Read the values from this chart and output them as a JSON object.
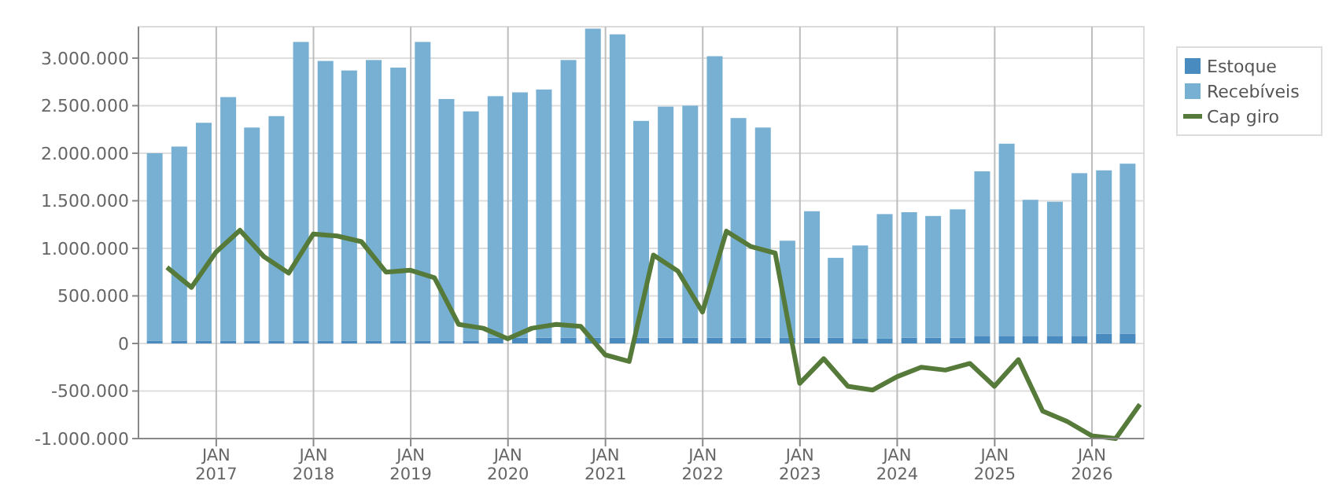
{
  "chart_data": {
    "type": "bar",
    "stacked": true,
    "grid": true,
    "legend": "top right",
    "x": [
      "2016-05-15",
      "2016-08-15",
      "2016-11-15",
      "2017-02-15",
      "2017-05-15",
      "2017-08-15",
      "2017-11-15",
      "2018-02-15",
      "2018-05-15",
      "2018-08-15",
      "2018-11-15",
      "2019-02-15",
      "2019-05-15",
      "2019-08-15",
      "2019-11-15",
      "2020-02-15",
      "2020-05-15",
      "2020-08-15",
      "2020-11-15",
      "2021-02-15",
      "2021-05-15",
      "2021-08-15",
      "2021-11-15",
      "2022-02-15",
      "2022-05-15",
      "2022-08-15",
      "2022-11-15",
      "2023-02-15",
      "2023-05-15",
      "2023-08-15",
      "2023-11-15",
      "2024-02-15",
      "2024-05-15",
      "2024-08-15",
      "2024-11-15",
      "2025-02-15",
      "2025-05-15",
      "2025-08-15",
      "2025-11-15",
      "2026-02-15",
      "2026-05-15"
    ],
    "xlim": [
      "2016-03-15",
      "2026-07-15"
    ],
    "xticks": [
      {
        "value": "2017-01-01",
        "label": "JAN 2017"
      },
      {
        "value": "2018-01-01",
        "label": "JAN 2018"
      },
      {
        "value": "2019-01-01",
        "label": "JAN 2019"
      },
      {
        "value": "2020-01-01",
        "label": "JAN 2020"
      },
      {
        "value": "2021-01-01",
        "label": "JAN 2021"
      },
      {
        "value": "2022-01-01",
        "label": "JAN 2022"
      },
      {
        "value": "2023-01-01",
        "label": "JAN 2023"
      },
      {
        "value": "2024-01-01",
        "label": "JAN 2024"
      },
      {
        "value": "2025-01-01",
        "label": "JAN 2025"
      },
      {
        "value": "2026-01-01",
        "label": "JAN 2026"
      }
    ],
    "ylim": [
      -1000000,
      3330000
    ],
    "yticks": [
      {
        "value": -1000000,
        "label": "-1.000.000"
      },
      {
        "value": -500000,
        "label": "-500.000"
      },
      0,
      {
        "value": 500000,
        "label": "500.000"
      },
      {
        "value": 1000000,
        "label": "1.000.000"
      },
      {
        "value": 1500000,
        "label": "1.500.000"
      },
      {
        "value": 2000000,
        "label": "2.000.000"
      },
      {
        "value": 2500000,
        "label": "2.500.000"
      },
      {
        "value": 3000000,
        "label": "3.000.000"
      }
    ],
    "series": [
      {
        "name": "Estoque",
        "color": "#4a8bbf",
        "values": [
          30000,
          30000,
          30000,
          30000,
          30000,
          30000,
          30000,
          30000,
          30000,
          30000,
          30000,
          30000,
          30000,
          30000,
          60000,
          60000,
          60000,
          60000,
          60000,
          60000,
          60000,
          60000,
          60000,
          60000,
          60000,
          60000,
          60000,
          60000,
          60000,
          50000,
          50000,
          60000,
          60000,
          60000,
          80000,
          80000,
          80000,
          80000,
          80000,
          100000,
          100000
        ]
      },
      {
        "name": "Recebíveis",
        "color": "#78b0d4",
        "values": [
          1970000,
          2040000,
          2290000,
          2560000,
          2240000,
          2360000,
          3140000,
          2940000,
          2840000,
          2950000,
          2870000,
          3140000,
          2540000,
          2410000,
          2540000,
          2580000,
          2610000,
          2920000,
          3250000,
          3190000,
          2280000,
          2430000,
          2440000,
          2960000,
          2310000,
          2210000,
          1020000,
          1330000,
          840000,
          980000,
          1310000,
          1320000,
          1280000,
          1350000,
          1730000,
          2020000,
          1430000,
          1410000,
          1710000,
          1720000,
          1790000
        ]
      },
      {
        "name": "Cap giro",
        "type": "line",
        "color": "#567a3a",
        "x": [
          "2016-06-30",
          "2016-09-30",
          "2016-12-31",
          "2017-03-31",
          "2017-06-30",
          "2017-09-30",
          "2017-12-31",
          "2018-03-31",
          "2018-06-30",
          "2018-09-30",
          "2018-12-31",
          "2019-03-31",
          "2019-06-30",
          "2019-09-30",
          "2019-12-31",
          "2020-03-31",
          "2020-06-30",
          "2020-09-30",
          "2020-12-31",
          "2021-03-31",
          "2021-06-30",
          "2021-09-30",
          "2021-12-31",
          "2022-03-31",
          "2022-06-30",
          "2022-09-30",
          "2022-12-31",
          "2023-03-31",
          "2023-06-30",
          "2023-09-30",
          "2023-12-31",
          "2024-03-31",
          "2024-06-30",
          "2024-09-30",
          "2024-12-31",
          "2025-03-31",
          "2025-06-30",
          "2025-09-30",
          "2025-12-31",
          "2026-03-31",
          "2026-06-30"
        ],
        "values": [
          800000,
          590000,
          960000,
          1190000,
          910000,
          740000,
          1150000,
          1130000,
          1070000,
          750000,
          770000,
          690000,
          200000,
          160000,
          50000,
          160000,
          200000,
          180000,
          -120000,
          -190000,
          930000,
          760000,
          330000,
          1180000,
          1020000,
          950000,
          -420000,
          -160000,
          -450000,
          -490000,
          -350000,
          -250000,
          -280000,
          -210000,
          -450000,
          -170000,
          -710000,
          -820000,
          -970000,
          -1000000,
          -640000
        ]
      }
    ]
  }
}
